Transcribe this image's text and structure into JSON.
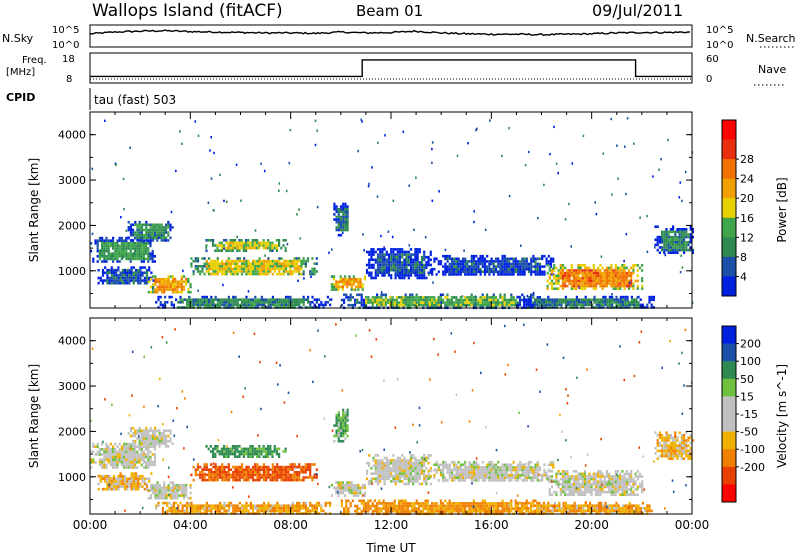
{
  "header": {
    "station": "Wallops Island (fitACF)",
    "beam": "Beam 01",
    "date": "09/Jul/2011"
  },
  "strip_labels": {
    "nsky": "N.Sky",
    "nsearch": "N.Search",
    "freq_line1": "Freq.",
    "freq_line2": "[MHz]",
    "nave": "Nave",
    "cpid": "CPID",
    "cpid_value": "tau (fast) 503",
    "noise_tick_top": "10^5",
    "noise_tick_bottom": "10^0",
    "freq_tick_top": "18",
    "freq_tick_bottom": "8",
    "nave_tick_top": "60",
    "nave_tick_bottom": "0"
  },
  "colors": {
    "power": [
      "#0020e0",
      "#1c4fa8",
      "#2e8a50",
      "#3fa64a",
      "#e8d000",
      "#f0a000",
      "#f07000",
      "#e83010",
      "#ff0000"
    ],
    "velocity": [
      "#0020e0",
      "#1c4fa8",
      "#2e8a50",
      "#70c040",
      "#c0c0c0",
      "#c0c0c0",
      "#f0b000",
      "#f08000",
      "#e84000",
      "#ff0000"
    ]
  },
  "chart_data": [
    {
      "type": "line",
      "name": "noise",
      "ylabel": "N.Sky",
      "y2label": "N.Search",
      "series": [
        {
          "x": [
            0,
            1,
            2,
            3,
            4,
            5,
            6,
            7,
            8,
            9,
            10,
            11,
            12,
            13,
            14,
            15,
            16,
            17,
            18,
            19,
            20,
            21,
            22,
            23,
            24
          ],
          "y": [
            3.0,
            3.4,
            3.6,
            3.7,
            3.5,
            3.4,
            3.3,
            3.2,
            3.2,
            3.1,
            3.4,
            3.2,
            3.3,
            3.6,
            3.2,
            3.0,
            2.9,
            2.9,
            2.8,
            2.9,
            3.0,
            3.2,
            3.3,
            3.3,
            3.4
          ]
        }
      ],
      "ylim": [
        0,
        5
      ]
    },
    {
      "type": "line",
      "name": "frequency",
      "ylabel": "Freq. [MHz]",
      "y2label": "Nave",
      "series": [
        {
          "x": [
            0,
            10.85,
            10.85,
            21.75,
            21.75,
            24
          ],
          "y": [
            10.2,
            10.2,
            15.7,
            15.7,
            10.2,
            10.2
          ]
        }
      ],
      "ylim": [
        8,
        18
      ]
    },
    {
      "type": "heatmap",
      "name": "power",
      "xlabel": "",
      "ylabel": "Slant Range [km]",
      "colorbar_label": "Power [dB]",
      "colorbar_ticks": [
        "4",
        "8",
        "12",
        "16",
        "20",
        "24",
        "28"
      ],
      "x_ticks": [
        "00:00",
        "04:00",
        "08:00",
        "12:00",
        "16:00",
        "20:00",
        "00:00"
      ],
      "y_ticks": [
        "1000",
        "2000",
        "3000",
        "4000"
      ],
      "xlim": [
        0,
        24
      ],
      "ylim": [
        180,
        4500
      ],
      "regions": [
        {
          "t0": 0.0,
          "t1": 2.6,
          "r0": 1200,
          "r1": 1750,
          "v": 12
        },
        {
          "t0": 1.5,
          "t1": 3.3,
          "r0": 1650,
          "r1": 2100,
          "v": 11
        },
        {
          "t0": 0.3,
          "t1": 2.5,
          "r0": 700,
          "r1": 1100,
          "v": 6
        },
        {
          "t0": 2.3,
          "t1": 4.0,
          "r0": 500,
          "r1": 900,
          "v": 23
        },
        {
          "t0": 4.0,
          "t1": 9.0,
          "r0": 900,
          "r1": 1300,
          "v": 18
        },
        {
          "t0": 4.6,
          "t1": 7.8,
          "r0": 1450,
          "r1": 1700,
          "v": 17
        },
        {
          "t0": 2.6,
          "t1": 9.6,
          "r0": 180,
          "r1": 450,
          "v": 10
        },
        {
          "t0": 9.6,
          "t1": 11.0,
          "r0": 600,
          "r1": 900,
          "v": 22
        },
        {
          "t0": 9.7,
          "t1": 10.3,
          "r0": 1800,
          "r1": 2500,
          "v": 7
        },
        {
          "t0": 11.0,
          "t1": 13.6,
          "r0": 850,
          "r1": 1500,
          "v": 6
        },
        {
          "t0": 10.0,
          "t1": 18.0,
          "r0": 180,
          "r1": 500,
          "v": 14
        },
        {
          "t0": 13.6,
          "t1": 18.5,
          "r0": 900,
          "r1": 1350,
          "v": 5
        },
        {
          "t0": 18.2,
          "t1": 22.0,
          "r0": 600,
          "r1": 1150,
          "v": 25
        },
        {
          "t0": 17.0,
          "t1": 22.5,
          "r0": 180,
          "r1": 450,
          "v": 9
        },
        {
          "t0": 22.5,
          "t1": 24.0,
          "r0": 1400,
          "r1": 2000,
          "v": 9
        }
      ]
    },
    {
      "type": "heatmap",
      "name": "velocity",
      "xlabel": "Time UT",
      "ylabel": "Slant Range [km]",
      "colorbar_label": "Velocity [m s^-1]",
      "colorbar_ticks": [
        "200",
        "100",
        "50",
        "15",
        "-15",
        "-50",
        "-100",
        "-200"
      ],
      "x_ticks": [
        "00:00",
        "04:00",
        "08:00",
        "12:00",
        "16:00",
        "20:00",
        "00:00"
      ],
      "y_ticks": [
        "1000",
        "2000",
        "3000",
        "4000"
      ],
      "xlim": [
        0,
        24
      ],
      "ylim": [
        180,
        4500
      ],
      "regions": [
        {
          "t0": 0.0,
          "t1": 2.6,
          "r0": 1200,
          "r1": 1750,
          "v": 0
        },
        {
          "t0": 1.5,
          "t1": 3.3,
          "r0": 1650,
          "r1": 2100,
          "v": 0
        },
        {
          "t0": 0.3,
          "t1": 2.5,
          "r0": 700,
          "r1": 1100,
          "v": -20
        },
        {
          "t0": 2.3,
          "t1": 4.0,
          "r0": 500,
          "r1": 900,
          "v": 0
        },
        {
          "t0": 4.0,
          "t1": 9.0,
          "r0": 900,
          "r1": 1300,
          "v": -80
        },
        {
          "t0": 4.6,
          "t1": 7.8,
          "r0": 1450,
          "r1": 1700,
          "v": 40
        },
        {
          "t0": 2.6,
          "t1": 9.6,
          "r0": 180,
          "r1": 450,
          "v": -30
        },
        {
          "t0": 9.6,
          "t1": 11.0,
          "r0": 600,
          "r1": 900,
          "v": 0
        },
        {
          "t0": 9.7,
          "t1": 10.3,
          "r0": 1800,
          "r1": 2500,
          "v": 30
        },
        {
          "t0": 11.0,
          "t1": 13.6,
          "r0": 850,
          "r1": 1500,
          "v": 0
        },
        {
          "t0": 10.0,
          "t1": 18.0,
          "r0": 180,
          "r1": 500,
          "v": -40
        },
        {
          "t0": 13.6,
          "t1": 18.5,
          "r0": 900,
          "r1": 1350,
          "v": 0
        },
        {
          "t0": 18.2,
          "t1": 22.0,
          "r0": 600,
          "r1": 1150,
          "v": 0
        },
        {
          "t0": 17.0,
          "t1": 22.5,
          "r0": 180,
          "r1": 450,
          "v": -30
        },
        {
          "t0": 22.5,
          "t1": 24.0,
          "r0": 1400,
          "r1": 2000,
          "v": -20
        }
      ]
    }
  ]
}
